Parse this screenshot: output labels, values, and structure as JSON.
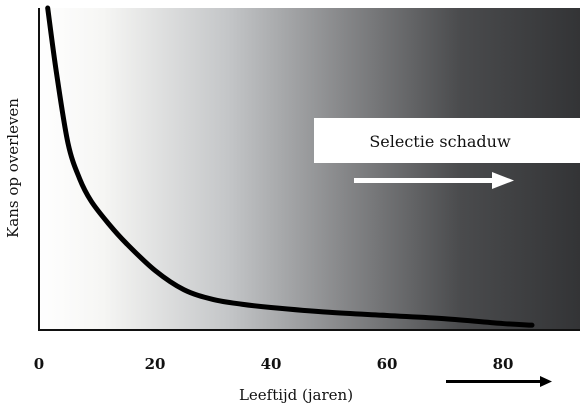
{
  "chart_data": {
    "type": "line",
    "title": "",
    "xlabel": "Leeftijd (jaren)",
    "ylabel": "Kans op overleven",
    "xlim": [
      0,
      90
    ],
    "x_ticks": [
      "0",
      "20",
      "40",
      "60",
      "80"
    ],
    "y_ticks": [],
    "grid": false,
    "background": "gradient white to dark gray, left to right",
    "series": [
      {
        "color": "#000000",
        "x": [
          1.5,
          3,
          5,
          7,
          9,
          12,
          15,
          20,
          25,
          30,
          35,
          40,
          50,
          60,
          70,
          80,
          85
        ],
        "y": [
          1.0,
          0.8,
          0.58,
          0.47,
          0.4,
          0.33,
          0.27,
          0.185,
          0.125,
          0.095,
          0.08,
          0.07,
          0.055,
          0.045,
          0.035,
          0.02,
          0.015
        ]
      }
    ],
    "annotation": {
      "text": "Selectie schaduw",
      "arrow_color": "#ffffff"
    },
    "x_arrow_color": "#000000"
  }
}
